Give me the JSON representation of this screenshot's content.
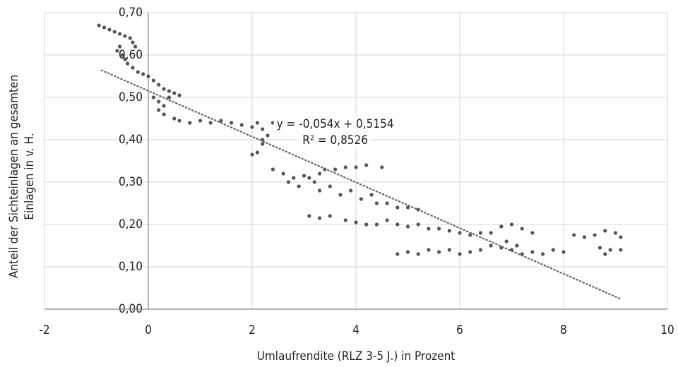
{
  "chart_data": {
    "type": "scatter",
    "x_label": "Umlaufrendite (RLZ 3-5 J.) in Prozent",
    "y_label": [
      "Anteil der Sichteinlagen an gesamten",
      "Einlagen in v. H."
    ],
    "annotations": [
      "y = -0,054x + 0,5154",
      "R² = 0,8526"
    ],
    "xlim": [
      -2,
      10
    ],
    "xticks": [
      -2,
      0,
      2,
      4,
      6,
      8,
      10
    ],
    "ylim": [
      0,
      0.7
    ],
    "yticks": [
      {
        "value": 0,
        "label": "0,00"
      },
      {
        "value": 0.1,
        "label": "0,10"
      },
      {
        "value": 0.2,
        "label": "0,20"
      },
      {
        "value": 0.3,
        "label": "0,30"
      },
      {
        "value": 0.4,
        "label": "0,40"
      },
      {
        "value": 0.5,
        "label": "0,50"
      },
      {
        "value": 0.6,
        "label": "0,60"
      },
      {
        "value": 0.7,
        "label": "0,70"
      }
    ],
    "grid": true,
    "color": "#555555",
    "trendline": {
      "slope": -0.054,
      "intercept": 0.5154,
      "x": [
        -0.9,
        9.1
      ],
      "color": "#666666"
    },
    "x": [
      -0.95,
      -0.85,
      -0.75,
      -0.65,
      -0.55,
      -0.45,
      -0.35,
      -0.3,
      -0.25,
      -0.6,
      -0.55,
      -0.5,
      -0.45,
      -0.4,
      -0.3,
      -0.2,
      -0.1,
      0,
      0.1,
      0.2,
      0.3,
      0.4,
      0.5,
      0.6,
      0.1,
      0.2,
      0.3,
      0.4,
      0.2,
      0.3,
      0.5,
      0.6,
      0.8,
      1.0,
      1.2,
      1.4,
      1.6,
      1.8,
      2.0,
      2.1,
      2.2,
      2.3,
      2.4,
      2.2,
      2.1,
      2.0,
      2.2,
      2.4,
      2.6,
      2.8,
      3.0,
      3.1,
      3.2,
      3.3,
      3.4,
      3.6,
      3.8,
      4.0,
      4.2,
      4.5,
      2.7,
      2.9,
      3.3,
      3.5,
      3.7,
      3.9,
      4.1,
      4.3,
      4.4,
      4.6,
      4.8,
      5.0,
      5.2,
      3.1,
      3.3,
      3.5,
      3.8,
      4.0,
      4.2,
      4.4,
      4.6,
      4.8,
      5.0,
      5.2,
      5.4,
      5.6,
      5.8,
      6.0,
      6.2,
      6.4,
      6.6,
      6.8,
      7.0,
      7.2,
      7.4,
      4.8,
      5.0,
      5.2,
      5.4,
      5.6,
      5.8,
      6.0,
      6.2,
      6.4,
      6.6,
      6.8,
      7.0,
      7.2,
      7.4,
      7.6,
      7.8,
      8.0,
      6.9,
      7.1,
      8.2,
      8.4,
      8.6,
      8.8,
      9.0,
      9.1,
      8.7,
      8.9,
      9.1,
      8.8
    ],
    "values": [
      0.67,
      0.665,
      0.66,
      0.655,
      0.65,
      0.645,
      0.64,
      0.63,
      0.62,
      0.61,
      0.62,
      0.6,
      0.59,
      0.58,
      0.57,
      0.56,
      0.555,
      0.55,
      0.54,
      0.53,
      0.52,
      0.515,
      0.51,
      0.505,
      0.5,
      0.49,
      0.48,
      0.5,
      0.47,
      0.46,
      0.45,
      0.445,
      0.44,
      0.445,
      0.44,
      0.445,
      0.44,
      0.435,
      0.43,
      0.44,
      0.425,
      0.41,
      0.44,
      0.4,
      0.37,
      0.365,
      0.39,
      0.33,
      0.32,
      0.31,
      0.315,
      0.31,
      0.3,
      0.32,
      0.33,
      0.33,
      0.335,
      0.335,
      0.34,
      0.335,
      0.3,
      0.29,
      0.28,
      0.29,
      0.27,
      0.28,
      0.26,
      0.27,
      0.25,
      0.25,
      0.24,
      0.24,
      0.235,
      0.22,
      0.215,
      0.22,
      0.21,
      0.205,
      0.2,
      0.2,
      0.21,
      0.2,
      0.195,
      0.2,
      0.19,
      0.19,
      0.185,
      0.18,
      0.175,
      0.18,
      0.18,
      0.195,
      0.2,
      0.19,
      0.18,
      0.13,
      0.135,
      0.13,
      0.14,
      0.135,
      0.14,
      0.13,
      0.135,
      0.14,
      0.15,
      0.145,
      0.14,
      0.13,
      0.135,
      0.13,
      0.14,
      0.135,
      0.16,
      0.15,
      0.175,
      0.17,
      0.175,
      0.185,
      0.18,
      0.17,
      0.145,
      0.14,
      0.14,
      0.13
    ]
  }
}
